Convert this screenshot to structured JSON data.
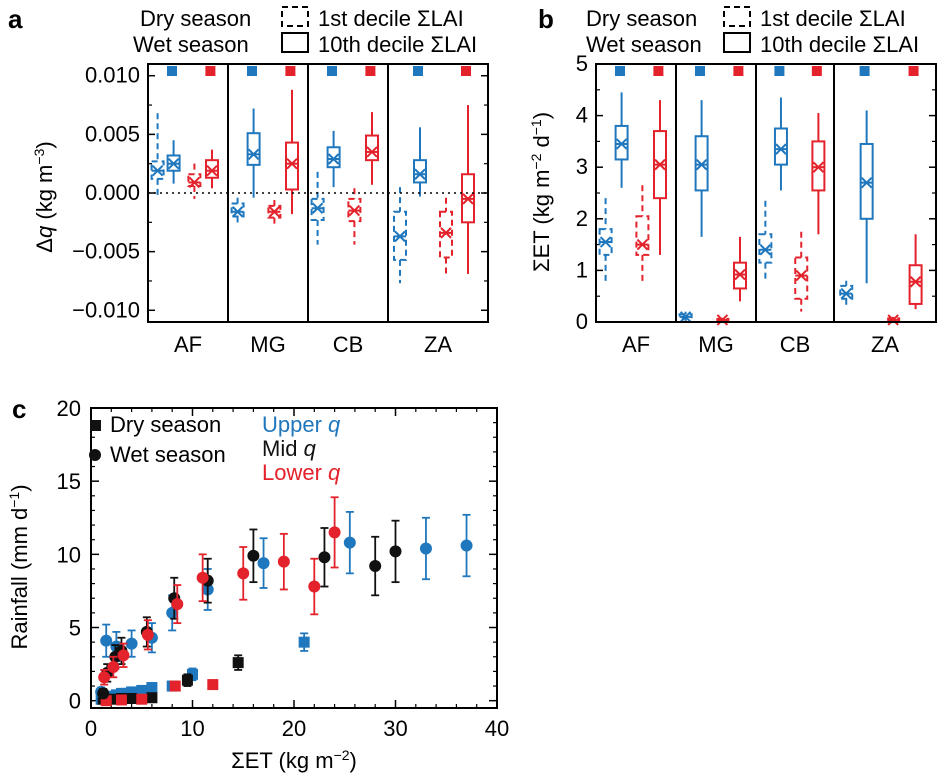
{
  "colors": {
    "dry": "#e3222b",
    "wet": "#1f77bd",
    "mid": "#111111",
    "axis": "#000000"
  },
  "chart_data": [
    {
      "panel": "a",
      "type": "box",
      "ylabel_prefix": "Δ",
      "ylabel_var": "q",
      "ylabel_unit": " (kg m",
      "ylabel_exp": "−3",
      "ylabel_close": ")",
      "ylim": [
        -0.011,
        0.011
      ],
      "yticks": [
        "0.010",
        "0.005",
        "0.000",
        "−0.005",
        "−0.010"
      ],
      "ytick_values": [
        0.01,
        0.005,
        0.0,
        -0.005,
        -0.01
      ],
      "zero_line": true,
      "legend": {
        "dry_label": "Dry season",
        "wet_label": "Wet season",
        "dashed_label": "1st decile ΣLAI",
        "solid_label": "10th decile ΣLAI"
      },
      "sites": [
        "AF",
        "MG",
        "CB",
        "ZA"
      ],
      "boxes": [
        {
          "site": "AF",
          "season": "wet",
          "decile": 1,
          "low": -0.0005,
          "q1": 0.0012,
          "median": 0.0019,
          "q3": 0.0027,
          "high": 0.0068
        },
        {
          "site": "AF",
          "season": "wet",
          "decile": 10,
          "low": 0.0008,
          "q1": 0.0019,
          "median": 0.0025,
          "q3": 0.0032,
          "high": 0.0045
        },
        {
          "site": "AF",
          "season": "dry",
          "decile": 1,
          "low": -0.0005,
          "q1": 0.0006,
          "median": 0.0009,
          "q3": 0.0016,
          "high": 0.0025
        },
        {
          "site": "AF",
          "season": "dry",
          "decile": 10,
          "low": 0.0004,
          "q1": 0.0013,
          "median": 0.0019,
          "q3": 0.0028,
          "high": 0.0037
        },
        {
          "site": "MG",
          "season": "wet",
          "decile": 1,
          "low": -0.0028,
          "q1": -0.002,
          "median": -0.0016,
          "q3": -0.0009,
          "high": -0.0004
        },
        {
          "site": "MG",
          "season": "wet",
          "decile": 10,
          "low": -0.0004,
          "q1": 0.0024,
          "median": 0.0033,
          "q3": 0.0051,
          "high": 0.0072
        },
        {
          "site": "MG",
          "season": "dry",
          "decile": 1,
          "low": -0.0029,
          "q1": -0.0021,
          "median": -0.0016,
          "q3": -0.0011,
          "high": -0.0006
        },
        {
          "site": "MG",
          "season": "dry",
          "decile": 10,
          "low": -0.0018,
          "q1": 0.0003,
          "median": 0.0025,
          "q3": 0.0043,
          "high": 0.0088
        },
        {
          "site": "CB",
          "season": "wet",
          "decile": 1,
          "low": -0.0044,
          "q1": -0.0023,
          "median": -0.0013,
          "q3": -0.0005,
          "high": 0.0018
        },
        {
          "site": "CB",
          "season": "wet",
          "decile": 10,
          "low": 0.0005,
          "q1": 0.0022,
          "median": 0.0029,
          "q3": 0.0039,
          "high": 0.0053
        },
        {
          "site": "CB",
          "season": "dry",
          "decile": 1,
          "low": -0.0044,
          "q1": -0.0024,
          "median": -0.0015,
          "q3": -0.0005,
          "high": 0.0004
        },
        {
          "site": "CB",
          "season": "dry",
          "decile": 10,
          "low": 0.0007,
          "q1": 0.0028,
          "median": 0.0035,
          "q3": 0.0049,
          "high": 0.0069
        },
        {
          "site": "ZA",
          "season": "wet",
          "decile": 1,
          "low": -0.0077,
          "q1": -0.0057,
          "median": -0.0037,
          "q3": -0.0016,
          "high": 0.0005
        },
        {
          "site": "ZA",
          "season": "wet",
          "decile": 10,
          "low": -0.0003,
          "q1": 0.0009,
          "median": 0.0016,
          "q3": 0.0028,
          "high": 0.0056
        },
        {
          "site": "ZA",
          "season": "dry",
          "decile": 1,
          "low": -0.0072,
          "q1": -0.0055,
          "median": -0.0034,
          "q3": -0.0016,
          "high": -0.0004
        },
        {
          "site": "ZA",
          "season": "dry",
          "decile": 10,
          "low": -0.0069,
          "q1": -0.0025,
          "median": -0.0005,
          "q3": 0.0016,
          "high": 0.0075
        }
      ]
    },
    {
      "panel": "b",
      "type": "box",
      "ylabel_prefix": "ΣET (kg m",
      "ylabel_exp1": "−2",
      "ylabel_mid": " d",
      "ylabel_exp2": "−1",
      "ylabel_close": ")",
      "ylim": [
        0,
        5
      ],
      "yticks": [
        "0",
        "1",
        "2",
        "3",
        "4",
        "5"
      ],
      "ytick_values": [
        0,
        1,
        2,
        3,
        4,
        5
      ],
      "legend": {
        "dry_label": "Dry season",
        "wet_label": "Wet season",
        "dashed_label": "1st decile ΣLAI",
        "solid_label": "10th decile ΣLAI"
      },
      "sites": [
        "AF",
        "MG",
        "CB",
        "ZA"
      ],
      "boxes": [
        {
          "site": "AF",
          "season": "wet",
          "decile": 1,
          "low": 0.75,
          "q1": 1.3,
          "median": 1.55,
          "q3": 1.8,
          "high": 2.4
        },
        {
          "site": "AF",
          "season": "wet",
          "decile": 10,
          "low": 2.6,
          "q1": 3.15,
          "median": 3.45,
          "q3": 3.8,
          "high": 4.45
        },
        {
          "site": "AF",
          "season": "dry",
          "decile": 1,
          "low": 0.75,
          "q1": 1.3,
          "median": 1.5,
          "q3": 2.05,
          "high": 2.65
        },
        {
          "site": "AF",
          "season": "dry",
          "decile": 10,
          "low": 1.3,
          "q1": 2.4,
          "median": 3.05,
          "q3": 3.7,
          "high": 4.3
        },
        {
          "site": "MG",
          "season": "wet",
          "decile": 1,
          "low": 0.02,
          "q1": 0.07,
          "median": 0.1,
          "q3": 0.15,
          "high": 0.2
        },
        {
          "site": "MG",
          "season": "wet",
          "decile": 10,
          "low": 1.65,
          "q1": 2.55,
          "median": 3.05,
          "q3": 3.6,
          "high": 4.3
        },
        {
          "site": "MG",
          "season": "dry",
          "decile": 1,
          "low": 0.0,
          "q1": 0.02,
          "median": 0.04,
          "q3": 0.06,
          "high": 0.08
        },
        {
          "site": "MG",
          "season": "dry",
          "decile": 10,
          "low": 0.4,
          "q1": 0.65,
          "median": 0.92,
          "q3": 1.15,
          "high": 1.65
        },
        {
          "site": "CB",
          "season": "wet",
          "decile": 1,
          "low": 0.8,
          "q1": 1.15,
          "median": 1.4,
          "q3": 1.7,
          "high": 2.35
        },
        {
          "site": "CB",
          "season": "wet",
          "decile": 10,
          "low": 2.55,
          "q1": 3.05,
          "median": 3.35,
          "q3": 3.75,
          "high": 4.35
        },
        {
          "site": "CB",
          "season": "dry",
          "decile": 1,
          "low": 0.2,
          "q1": 0.45,
          "median": 0.9,
          "q3": 1.25,
          "high": 1.75
        },
        {
          "site": "CB",
          "season": "dry",
          "decile": 10,
          "low": 1.7,
          "q1": 2.55,
          "median": 3.0,
          "q3": 3.5,
          "high": 4.05
        },
        {
          "site": "ZA",
          "season": "wet",
          "decile": 1,
          "low": 0.3,
          "q1": 0.45,
          "median": 0.55,
          "q3": 0.7,
          "high": 0.8
        },
        {
          "site": "ZA",
          "season": "wet",
          "decile": 10,
          "low": 0.75,
          "q1": 2.0,
          "median": 2.7,
          "q3": 3.45,
          "high": 4.1
        },
        {
          "site": "ZA",
          "season": "dry",
          "decile": 1,
          "low": 0.0,
          "q1": 0.02,
          "median": 0.04,
          "q3": 0.07,
          "high": 0.1
        },
        {
          "site": "ZA",
          "season": "dry",
          "decile": 10,
          "low": 0.25,
          "q1": 0.35,
          "median": 0.78,
          "q3": 1.1,
          "high": 1.7
        }
      ]
    },
    {
      "panel": "c",
      "type": "scatter",
      "xlabel_prefix": "ΣET (kg m",
      "xlabel_exp": "−2",
      "xlabel_close": ")",
      "ylabel_prefix": "Rainfall (mm d",
      "ylabel_exp": "−1",
      "ylabel_close": ")",
      "xlim": [
        0,
        40
      ],
      "ylim": [
        -0.5,
        20
      ],
      "xticks": [
        "0",
        "10",
        "20",
        "30",
        "40"
      ],
      "xtick_values": [
        0,
        10,
        20,
        30,
        40
      ],
      "yticks": [
        "0",
        "5",
        "10",
        "15",
        "20"
      ],
      "ytick_values": [
        0,
        5,
        10,
        15,
        20
      ],
      "legend": {
        "dry_label": "Dry season",
        "wet_label": "Wet season",
        "upper_label": "Upper ",
        "mid_label": "Mid ",
        "lower_label": "Lower ",
        "var": "q"
      },
      "wet_points": [
        {
          "g": "upper",
          "x": 1.0,
          "y": 0.6,
          "e": 0.3
        },
        {
          "g": "upper",
          "x": 1.5,
          "y": 4.1,
          "e": 1.1
        },
        {
          "g": "upper",
          "x": 2.5,
          "y": 3.7,
          "e": 1.0
        },
        {
          "g": "upper",
          "x": 4.0,
          "y": 3.9,
          "e": 0.9
        },
        {
          "g": "upper",
          "x": 6.0,
          "y": 4.3,
          "e": 1.0
        },
        {
          "g": "upper",
          "x": 8.0,
          "y": 6.0,
          "e": 1.2
        },
        {
          "g": "upper",
          "x": 11.5,
          "y": 7.6,
          "e": 1.4
        },
        {
          "g": "upper",
          "x": 17.0,
          "y": 9.4,
          "e": 1.7
        },
        {
          "g": "upper",
          "x": 25.5,
          "y": 10.8,
          "e": 2.1
        },
        {
          "g": "upper",
          "x": 33.0,
          "y": 10.4,
          "e": 2.1
        },
        {
          "g": "upper",
          "x": 37.0,
          "y": 10.6,
          "e": 2.1
        },
        {
          "g": "mid",
          "x": 1.2,
          "y": 0.5,
          "e": 0.3
        },
        {
          "g": "mid",
          "x": 1.6,
          "y": 1.9,
          "e": 0.6
        },
        {
          "g": "mid",
          "x": 2.4,
          "y": 3.0,
          "e": 0.8
        },
        {
          "g": "mid",
          "x": 3.0,
          "y": 3.4,
          "e": 0.9
        },
        {
          "g": "mid",
          "x": 5.5,
          "y": 4.7,
          "e": 1.0
        },
        {
          "g": "mid",
          "x": 8.2,
          "y": 7.0,
          "e": 1.4
        },
        {
          "g": "mid",
          "x": 11.5,
          "y": 8.2,
          "e": 1.5
        },
        {
          "g": "mid",
          "x": 16.0,
          "y": 9.9,
          "e": 1.8
        },
        {
          "g": "mid",
          "x": 23.0,
          "y": 9.8,
          "e": 2.0
        },
        {
          "g": "mid",
          "x": 28.0,
          "y": 9.2,
          "e": 2.0
        },
        {
          "g": "mid",
          "x": 30.0,
          "y": 10.2,
          "e": 2.1
        },
        {
          "g": "lower",
          "x": 1.3,
          "y": 1.6,
          "e": 0.5
        },
        {
          "g": "lower",
          "x": 2.2,
          "y": 2.3,
          "e": 0.7
        },
        {
          "g": "lower",
          "x": 3.2,
          "y": 3.1,
          "e": 0.8
        },
        {
          "g": "lower",
          "x": 5.6,
          "y": 4.5,
          "e": 1.0
        },
        {
          "g": "lower",
          "x": 8.5,
          "y": 6.6,
          "e": 1.3
        },
        {
          "g": "lower",
          "x": 11.0,
          "y": 8.4,
          "e": 1.6
        },
        {
          "g": "lower",
          "x": 15.0,
          "y": 8.7,
          "e": 1.8
        },
        {
          "g": "lower",
          "x": 19.0,
          "y": 9.5,
          "e": 1.9
        },
        {
          "g": "lower",
          "x": 22.0,
          "y": 7.8,
          "e": 1.9
        },
        {
          "g": "lower",
          "x": 24.0,
          "y": 11.5,
          "e": 2.4
        }
      ],
      "dry_points": [
        {
          "g": "upper",
          "x": 1.0,
          "y": 0.1,
          "e": 0.1
        },
        {
          "g": "upper",
          "x": 1.5,
          "y": 0.2,
          "e": 0.1
        },
        {
          "g": "upper",
          "x": 2.0,
          "y": 0.3,
          "e": 0.15
        },
        {
          "g": "upper",
          "x": 2.5,
          "y": 0.4,
          "e": 0.15
        },
        {
          "g": "upper",
          "x": 3.0,
          "y": 0.5,
          "e": 0.2
        },
        {
          "g": "upper",
          "x": 3.5,
          "y": 0.5,
          "e": 0.2
        },
        {
          "g": "upper",
          "x": 4.0,
          "y": 0.6,
          "e": 0.2
        },
        {
          "g": "upper",
          "x": 5.0,
          "y": 0.7,
          "e": 0.2
        },
        {
          "g": "upper",
          "x": 6.0,
          "y": 0.9,
          "e": 0.25
        },
        {
          "g": "upper",
          "x": 8.0,
          "y": 1.0,
          "e": 0.25
        },
        {
          "g": "upper",
          "x": 10.0,
          "y": 1.8,
          "e": 0.4
        },
        {
          "g": "upper",
          "x": 21.0,
          "y": 4.0,
          "e": 0.6
        },
        {
          "g": "mid",
          "x": 1.2,
          "y": 0.1,
          "e": 0.1
        },
        {
          "g": "mid",
          "x": 2.0,
          "y": 0.1,
          "e": 0.1
        },
        {
          "g": "mid",
          "x": 3.0,
          "y": 0.15,
          "e": 0.1
        },
        {
          "g": "mid",
          "x": 4.0,
          "y": 0.15,
          "e": 0.1
        },
        {
          "g": "mid",
          "x": 6.0,
          "y": 0.2,
          "e": 0.1
        },
        {
          "g": "mid",
          "x": 9.5,
          "y": 1.4,
          "e": 0.4
        },
        {
          "g": "mid",
          "x": 14.5,
          "y": 2.6,
          "e": 0.5
        },
        {
          "g": "lower",
          "x": 1.5,
          "y": 0.0,
          "e": 0.05
        },
        {
          "g": "lower",
          "x": 3.0,
          "y": 0.05,
          "e": 0.05
        },
        {
          "g": "lower",
          "x": 5.0,
          "y": 0.1,
          "e": 0.05
        },
        {
          "g": "lower",
          "x": 8.3,
          "y": 1.0,
          "e": 0.2
        },
        {
          "g": "lower",
          "x": 12.0,
          "y": 1.1,
          "e": 0.2
        }
      ]
    }
  ]
}
